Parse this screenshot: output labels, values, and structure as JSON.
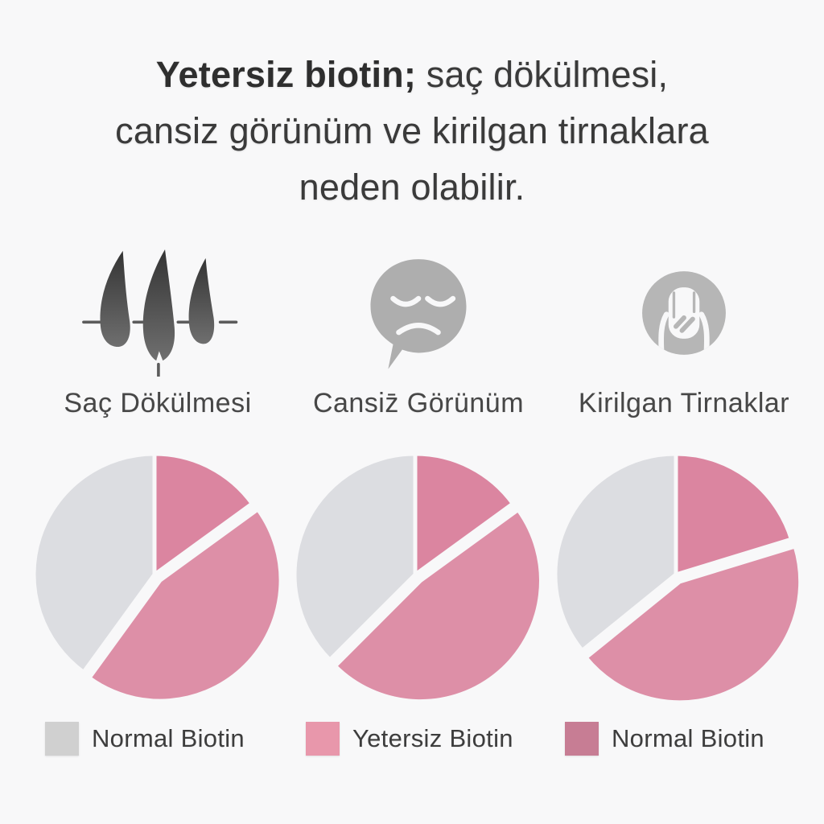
{
  "page": {
    "background_color": "#f8f8f9",
    "text_color": "#3a3a3a"
  },
  "title": {
    "line1_bold": "Yetersiz biotin;",
    "line1_rest": " saç dökülmesi,",
    "line2": "cansiz görünüm ve kirilgan tirnaklara",
    "line3": "neden olabilir."
  },
  "symptoms": [
    {
      "icon": "hair-loss-icon",
      "label": "Saç Dökülmesi"
    },
    {
      "icon": "sad-speech-bubble-icon",
      "label": "Cansiz̄ Görünüm"
    },
    {
      "icon": "brittle-nail-icon",
      "label": "Kirilgan Tirnaklar"
    }
  ],
  "legend": [
    {
      "label": "Normal Biotin",
      "color": "#d0d0d0"
    },
    {
      "label": "Yetersiz Biotin",
      "color": "#e897ab"
    },
    {
      "label": "Normal Biotin",
      "color": "#c77d94"
    }
  ],
  "chart_data": [
    {
      "type": "pie",
      "title": "Saç Dökülmesi",
      "legend_position": "bottom",
      "segments": [
        {
          "label": "Normal Biotin",
          "color": "#dcdde1",
          "start_deg": 216,
          "end_deg": 360,
          "percent": 40,
          "exploded": false
        },
        {
          "label": "Normal Biotin",
          "color": "#db85a0",
          "start_deg": 0,
          "end_deg": 54,
          "percent": 15,
          "exploded": false
        },
        {
          "label": "Yetersiz Biotin",
          "color": "#dd8fa7",
          "start_deg": 54,
          "end_deg": 216,
          "percent": 45,
          "exploded": true
        }
      ]
    },
    {
      "type": "pie",
      "title": "Cansiz̄ Görünüm",
      "legend_position": "bottom",
      "segments": [
        {
          "label": "Normal Biotin",
          "color": "#dcdde1",
          "start_deg": 225,
          "end_deg": 360,
          "percent": 38,
          "exploded": false
        },
        {
          "label": "Normal Biotin",
          "color": "#db85a0",
          "start_deg": 0,
          "end_deg": 54,
          "percent": 15,
          "exploded": false
        },
        {
          "label": "Yetersiz Biotin",
          "color": "#dd8fa7",
          "start_deg": 54,
          "end_deg": 225,
          "percent": 47,
          "exploded": true
        }
      ]
    },
    {
      "type": "pie",
      "title": "Kirilgan Tirnaklar",
      "legend_position": "bottom",
      "segments": [
        {
          "label": "Normal Biotin",
          "color": "#dcdde1",
          "start_deg": 231,
          "end_deg": 360,
          "percent": 36,
          "exploded": false
        },
        {
          "label": "Normal Biotin",
          "color": "#db85a0",
          "start_deg": 0,
          "end_deg": 73,
          "percent": 20,
          "exploded": false
        },
        {
          "label": "Yetersiz Biotin",
          "color": "#dd8fa7",
          "start_deg": 73,
          "end_deg": 231,
          "percent": 44,
          "exploded": true
        }
      ]
    }
  ],
  "icon_colors": {
    "hair_dark": "#3d3d3d",
    "hair_light": "#6c6c6c",
    "bubble_gray": "#aeaeae",
    "nail_circle_gray": "#b6b6b6"
  }
}
